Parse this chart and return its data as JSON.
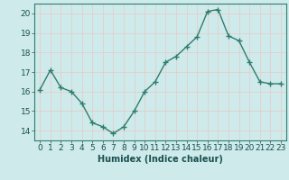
{
  "x": [
    0,
    1,
    2,
    3,
    4,
    5,
    6,
    7,
    8,
    9,
    10,
    11,
    12,
    13,
    14,
    15,
    16,
    17,
    18,
    19,
    20,
    21,
    22,
    23
  ],
  "y": [
    16.1,
    17.1,
    16.2,
    16.0,
    15.4,
    14.4,
    14.2,
    13.85,
    14.2,
    15.0,
    16.0,
    16.5,
    17.5,
    17.8,
    18.3,
    18.8,
    20.1,
    20.2,
    18.85,
    18.6,
    17.5,
    16.5,
    16.4,
    16.4
  ],
  "line_color": "#2e7d6e",
  "marker": "+",
  "marker_size": 4,
  "line_width": 1.0,
  "bg_color": "#ceeaea",
  "grid_color_minor": "#e8c8c8",
  "grid_color_major": "#d4a8a8",
  "xlabel": "Humidex (Indice chaleur)",
  "xlabel_color": "#1a5050",
  "tick_color": "#1a5050",
  "spine_color": "#2e7d6e",
  "xlim": [
    -0.5,
    23.5
  ],
  "ylim": [
    13.5,
    20.5
  ],
  "yticks": [
    14,
    15,
    16,
    17,
    18,
    19,
    20
  ],
  "xticks": [
    0,
    1,
    2,
    3,
    4,
    5,
    6,
    7,
    8,
    9,
    10,
    11,
    12,
    13,
    14,
    15,
    16,
    17,
    18,
    19,
    20,
    21,
    22,
    23
  ],
  "xlabel_fontsize": 7,
  "tick_fontsize": 6.5
}
